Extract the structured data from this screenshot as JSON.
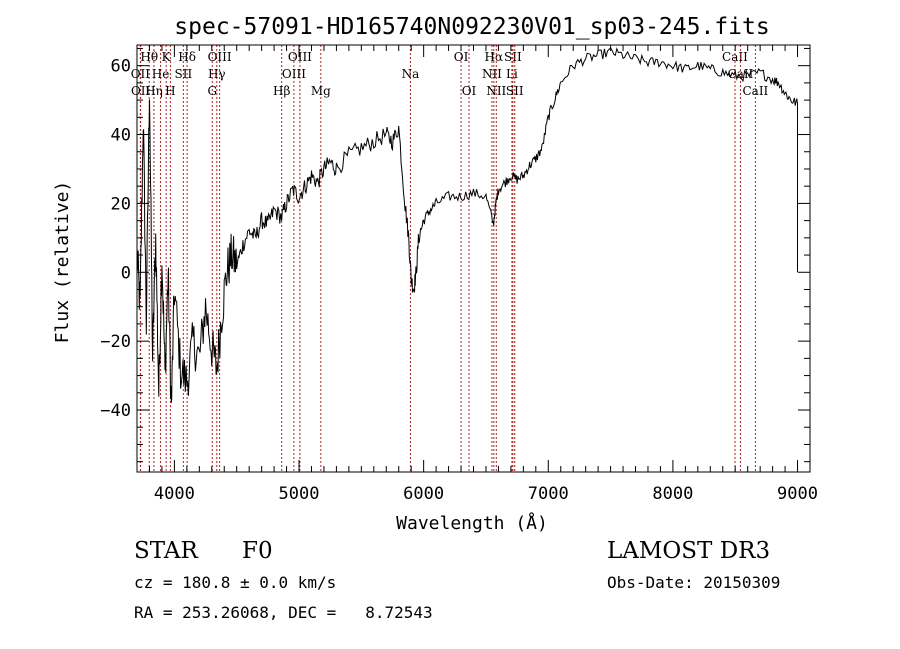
{
  "chart_data": {
    "type": "line",
    "title": "spec-57091-HD165740N092230V01_sp03-245.fits",
    "xlabel": "Wavelength (Å)",
    "ylabel": "Flux (relative)",
    "xlim": [
      3700,
      9100
    ],
    "ylim": [
      -58,
      66
    ],
    "xticks": [
      4000,
      5000,
      6000,
      7000,
      8000,
      9000
    ],
    "xtick_labels": [
      "4000",
      "5000",
      "6000",
      "7000",
      "8000",
      "9000"
    ],
    "yticks": [
      -40,
      -20,
      0,
      20,
      40,
      60
    ],
    "ytick_labels": [
      "−40",
      "−20",
      "0",
      "20",
      "40",
      "60"
    ],
    "grid": false,
    "line_color": "#000000",
    "marker_color": "#b22222",
    "spectrum": {
      "name": "",
      "x": [
        3700,
        3725,
        3750,
        3775,
        3800,
        3825,
        3850,
        3875,
        3900,
        3925,
        3950,
        3975,
        4000,
        4050,
        4100,
        4150,
        4200,
        4250,
        4300,
        4340,
        4380,
        4420,
        4460,
        4500,
        4550,
        4600,
        4650,
        4700,
        4750,
        4800,
        4861,
        4900,
        4950,
        5000,
        5050,
        5100,
        5150,
        5200,
        5250,
        5300,
        5400,
        5500,
        5600,
        5700,
        5750,
        5800,
        5850,
        5880,
        5900,
        5920,
        5940,
        5960,
        6000,
        6050,
        6100,
        6200,
        6300,
        6400,
        6500,
        6560,
        6580,
        6600,
        6650,
        6700,
        6750,
        6800,
        6850,
        6900,
        6950,
        7000,
        7050,
        7100,
        7200,
        7300,
        7400,
        7500,
        7600,
        7700,
        7800,
        7900,
        8000,
        8100,
        8200,
        8300,
        8400,
        8500,
        8600,
        8700,
        8800,
        8850,
        8900,
        8950,
        9000
      ],
      "y": [
        5,
        -10,
        45,
        -15,
        55,
        -25,
        10,
        -35,
        5,
        -30,
        0,
        -40,
        -5,
        -28,
        -32,
        -20,
        -25,
        -10,
        -22,
        -28,
        -12,
        0,
        5,
        2,
        8,
        12,
        10,
        15,
        14,
        18,
        16,
        20,
        24,
        22,
        25,
        28,
        26,
        30,
        32,
        30,
        34,
        36,
        38,
        40,
        38,
        42,
        20,
        10,
        -2,
        -5,
        0,
        10,
        15,
        18,
        20,
        22,
        22,
        23,
        22,
        14,
        20,
        24,
        26,
        28,
        27,
        28,
        31,
        33,
        36,
        45,
        50,
        55,
        60,
        62,
        63,
        64,
        63,
        62,
        61,
        61,
        60,
        59,
        60,
        59,
        58,
        57,
        57,
        58,
        56,
        55,
        52,
        50,
        49
      ]
    },
    "line_markers": [
      {
        "label": "Hθ",
        "x": 3798,
        "row": 0
      },
      {
        "label": "OII",
        "x": 3727,
        "row": 1
      },
      {
        "label": "OII",
        "x": 3729,
        "row": 2
      },
      {
        "label": "Hη",
        "x": 3836,
        "row": 2
      },
      {
        "label": "He",
        "x": 3889,
        "row": 1
      },
      {
        "label": "K",
        "x": 3934,
        "row": 0
      },
      {
        "label": "H",
        "x": 3968,
        "row": 2
      },
      {
        "label": "SII",
        "x": 4072,
        "row": 1
      },
      {
        "label": "Hδ",
        "x": 4102,
        "row": 0
      },
      {
        "label": "G",
        "x": 4304,
        "row": 2
      },
      {
        "label": "Hγ",
        "x": 4340,
        "row": 1
      },
      {
        "label": "OIII",
        "x": 4363,
        "row": 0
      },
      {
        "label": "Hβ",
        "x": 4861,
        "row": 2
      },
      {
        "label": "OIII",
        "x": 4959,
        "row": 1
      },
      {
        "label": "OIII",
        "x": 5007,
        "row": 0
      },
      {
        "label": "Mg",
        "x": 5175,
        "row": 2
      },
      {
        "label": "Na",
        "x": 5894,
        "row": 1
      },
      {
        "label": "OI",
        "x": 6300,
        "row": 0
      },
      {
        "label": "OI",
        "x": 6364,
        "row": 2
      },
      {
        "label": "NII",
        "x": 6548,
        "row": 1
      },
      {
        "label": "Hα",
        "x": 6563,
        "row": 0
      },
      {
        "label": "NII",
        "x": 6583,
        "row": 2
      },
      {
        "label": "Li",
        "x": 6708,
        "row": 1
      },
      {
        "label": "SII",
        "x": 6716,
        "row": 0
      },
      {
        "label": "SII",
        "x": 6731,
        "row": 2
      },
      {
        "label": "CaII",
        "x": 8498,
        "row": 0
      },
      {
        "label": "CaII",
        "x": 8542,
        "row": 1
      },
      {
        "label": "CaII",
        "x": 8662,
        "row": 2
      }
    ]
  },
  "info": {
    "object_class": "STAR",
    "subclass": "F0",
    "survey": "LAMOST DR3",
    "cz": "cz = 180.8 ± 0.0 km/s",
    "obs_date": "Obs-Date: 20150309",
    "coords": "RA = 253.26068, DEC =   8.72543"
  }
}
